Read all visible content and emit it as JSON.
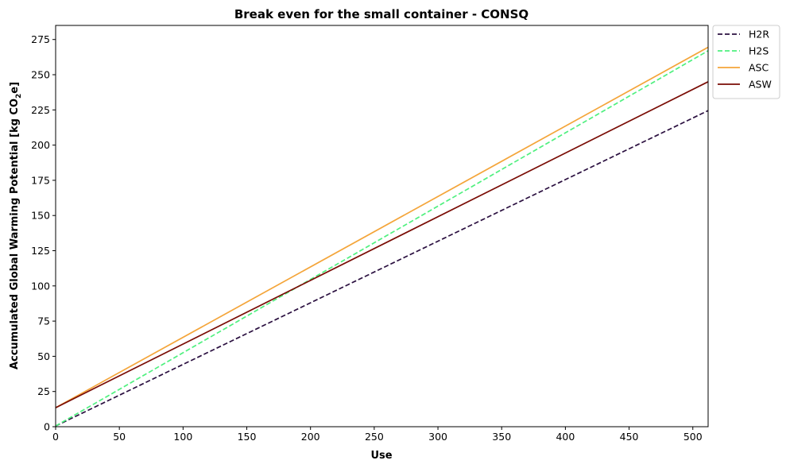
{
  "chart_data": {
    "type": "line",
    "title": "Break even for the small container - CONSQ",
    "xlabel": "Use",
    "ylabel": "Accumulated Global Warming Potential [kg CO",
    "ylabel_sub": "2",
    "ylabel_suffix": "e]",
    "xlim": [
      0,
      512
    ],
    "ylim": [
      0,
      285
    ],
    "xticks": [
      0,
      50,
      100,
      150,
      200,
      250,
      300,
      350,
      400,
      450,
      500
    ],
    "yticks": [
      0,
      25,
      50,
      75,
      100,
      125,
      150,
      175,
      200,
      225,
      250,
      275
    ],
    "grid": false,
    "legend_position": "outside-top-right",
    "series": [
      {
        "name": "H2R",
        "color": "#2b1040",
        "dash": "dashed",
        "x": [
          0,
          512
        ],
        "y": [
          0.5,
          224.5
        ]
      },
      {
        "name": "H2S",
        "color": "#4ff07f",
        "dash": "dashed",
        "x": [
          0,
          512
        ],
        "y": [
          0.5,
          267
        ]
      },
      {
        "name": "ASC",
        "color": "#f4a53a",
        "dash": "solid",
        "x": [
          0,
          512
        ],
        "y": [
          13.5,
          269.5
        ]
      },
      {
        "name": "ASW",
        "color": "#7a0c05",
        "dash": "solid",
        "x": [
          0,
          512
        ],
        "y": [
          13.5,
          245
        ]
      }
    ]
  }
}
